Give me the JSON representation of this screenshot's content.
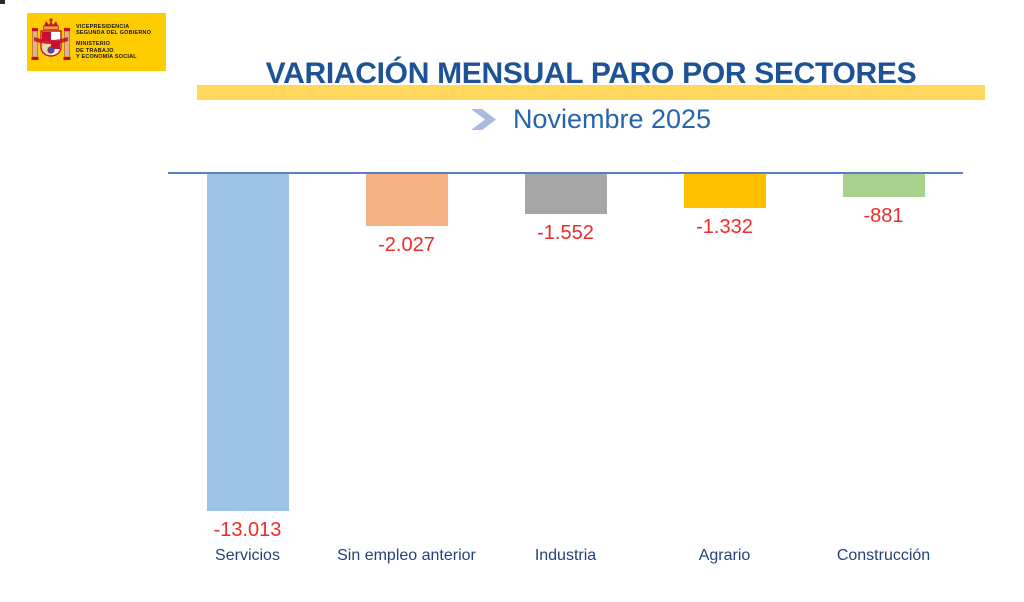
{
  "logo": {
    "line1a": "VICEPRESIDENCIA",
    "line1b": "SEGUNDA DEL GOBIERNO",
    "line2a": "MINISTERIO",
    "line2b": "DE TRABAJO",
    "line2c": "Y ECONOMÍA SOCIAL",
    "background_color": "#FFCC00"
  },
  "header": {
    "title": "VARIACIÓN MENSUAL PARO POR SECTORES",
    "subtitle": "Noviembre 2025",
    "title_color": "#1D5296",
    "subtitle_color": "#2565AE",
    "highlight_band_color": "#FFD75C",
    "chevron_icon": "chevron-right",
    "chevron_color": "#A9BCDF"
  },
  "chart_data": {
    "type": "bar",
    "title": "VARIACIÓN MENSUAL PARO POR SECTORES",
    "subtitle": "Noviembre 2025",
    "categories": [
      "Servicios",
      "Sin empleo anterior",
      "Industria",
      "Agrario",
      "Construcción"
    ],
    "values": [
      -13013,
      -2027,
      -1552,
      -1332,
      -881
    ],
    "value_labels": [
      "-13.013",
      "-2.027",
      "-1.552",
      "-1.332",
      "-881"
    ],
    "bar_colors": [
      "#9DC3E6",
      "#F4B183",
      "#A6A6A6",
      "#FFC000",
      "#A9D18E"
    ],
    "value_label_color": "#EE2B2B",
    "category_label_color": "#25417E",
    "baseline_color": "#5B7EC8",
    "orientation": "vertical",
    "bars_hang_below_zero_line": true,
    "ylim": [
      -13500,
      0
    ],
    "grid": false,
    "legend": false
  }
}
